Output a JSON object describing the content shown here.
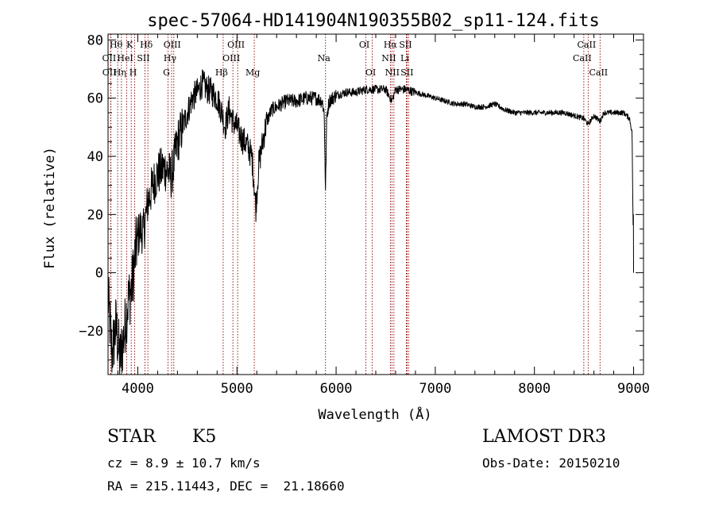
{
  "chart_data": {
    "type": "line",
    "title": "spec-57064-HD141904N190355B02_sp11-124.fits",
    "xlabel": "Wavelength (Å)",
    "ylabel": "Flux (relative)",
    "xlim": [
      3700,
      9100
    ],
    "ylim": [
      -35,
      82
    ],
    "xticks": [
      4000,
      5000,
      6000,
      7000,
      8000,
      9000
    ],
    "yticks": [
      -20,
      0,
      20,
      40,
      60,
      80
    ],
    "line_color": "#000000",
    "marker_color": "#8b0000",
    "spectrum_anchors": [
      [
        3700,
        -8
      ],
      [
        3740,
        -28
      ],
      [
        3780,
        -18
      ],
      [
        3820,
        -30
      ],
      [
        3860,
        -22
      ],
      [
        3900,
        -10
      ],
      [
        3940,
        -5
      ],
      [
        3980,
        8
      ],
      [
        4020,
        15
      ],
      [
        4060,
        14
      ],
      [
        4100,
        24
      ],
      [
        4150,
        30
      ],
      [
        4200,
        34
      ],
      [
        4260,
        36
      ],
      [
        4300,
        35
      ],
      [
        4340,
        33
      ],
      [
        4400,
        45
      ],
      [
        4450,
        50
      ],
      [
        4500,
        55
      ],
      [
        4550,
        60
      ],
      [
        4600,
        62
      ],
      [
        4650,
        65
      ],
      [
        4700,
        63
      ],
      [
        4750,
        62
      ],
      [
        4800,
        60
      ],
      [
        4850,
        55
      ],
      [
        4880,
        50
      ],
      [
        4920,
        56
      ],
      [
        4960,
        52
      ],
      [
        5000,
        50
      ],
      [
        5050,
        46
      ],
      [
        5100,
        44
      ],
      [
        5150,
        40
      ],
      [
        5170,
        32
      ],
      [
        5190,
        22
      ],
      [
        5220,
        37
      ],
      [
        5270,
        47
      ],
      [
        5300,
        52
      ],
      [
        5350,
        56
      ],
      [
        5400,
        57
      ],
      [
        5450,
        58
      ],
      [
        5500,
        59
      ],
      [
        5600,
        59
      ],
      [
        5700,
        60
      ],
      [
        5800,
        60
      ],
      [
        5860,
        59
      ],
      [
        5880,
        55
      ],
      [
        5893,
        28
      ],
      [
        5906,
        54
      ],
      [
        5930,
        59
      ],
      [
        6000,
        61
      ],
      [
        6100,
        62
      ],
      [
        6200,
        62
      ],
      [
        6300,
        63
      ],
      [
        6400,
        63
      ],
      [
        6500,
        63
      ],
      [
        6563,
        59
      ],
      [
        6600,
        63
      ],
      [
        6700,
        63
      ],
      [
        6800,
        62
      ],
      [
        6900,
        61
      ],
      [
        7000,
        60
      ],
      [
        7100,
        59
      ],
      [
        7200,
        58
      ],
      [
        7300,
        58
      ],
      [
        7400,
        57
      ],
      [
        7500,
        57
      ],
      [
        7600,
        58
      ],
      [
        7700,
        56
      ],
      [
        7800,
        55
      ],
      [
        7900,
        55
      ],
      [
        8000,
        55
      ],
      [
        8100,
        55
      ],
      [
        8200,
        55
      ],
      [
        8300,
        55
      ],
      [
        8400,
        54
      ],
      [
        8498,
        53
      ],
      [
        8542,
        51
      ],
      [
        8600,
        54
      ],
      [
        8662,
        52
      ],
      [
        8700,
        55
      ],
      [
        8800,
        55
      ],
      [
        8900,
        55
      ],
      [
        8960,
        53
      ],
      [
        8985,
        48
      ],
      [
        9000,
        0
      ]
    ],
    "lines": [
      {
        "label": "Hθ",
        "x": 3797,
        "row": 0
      },
      {
        "label": "OII",
        "x": 3727,
        "row": 1
      },
      {
        "label": "OII",
        "x": 3729,
        "row": 2
      },
      {
        "label": "Hη",
        "x": 3835,
        "row": 2
      },
      {
        "label": "HeI",
        "x": 3889,
        "row": 1
      },
      {
        "label": "K",
        "x": 3934,
        "row": 0
      },
      {
        "label": "H",
        "x": 3969,
        "row": 2
      },
      {
        "label": "SII",
        "x": 4072,
        "row": 1
      },
      {
        "label": "Hδ",
        "x": 4102,
        "row": 0
      },
      {
        "label": "OIII",
        "x": 4363,
        "row": 0
      },
      {
        "label": "Hγ",
        "x": 4341,
        "row": 1
      },
      {
        "label": "G",
        "x": 4305,
        "row": 2
      },
      {
        "label": "Hβ",
        "x": 4861,
        "row": 2
      },
      {
        "label": "OIII",
        "x": 4959,
        "row": 1
      },
      {
        "label": "OIII",
        "x": 5007,
        "row": 0
      },
      {
        "label": "Mg",
        "x": 5175,
        "row": 2
      },
      {
        "label": "Na",
        "x": 5893,
        "row": 1
      },
      {
        "label": "OI",
        "x": 6300,
        "row": 0
      },
      {
        "label": "OI",
        "x": 6364,
        "row": 2
      },
      {
        "label": "NII",
        "x": 6548,
        "row": 1
      },
      {
        "label": "Hα",
        "x": 6563,
        "row": 0
      },
      {
        "label": "NII",
        "x": 6583,
        "row": 2
      },
      {
        "label": "Li",
        "x": 6708,
        "row": 1
      },
      {
        "label": "SII",
        "x": 6716,
        "row": 0
      },
      {
        "label": "SII",
        "x": 6731,
        "row": 2
      },
      {
        "label": "CaII",
        "x": 8498,
        "row": 1
      },
      {
        "label": "CaII",
        "x": 8542,
        "row": 0
      },
      {
        "label": "CaII",
        "x": 8662,
        "row": 2
      }
    ]
  },
  "info": {
    "class_label": "STAR",
    "subclass": "K5",
    "survey": "LAMOST DR3",
    "redshift_line": "cz = 8.9 ± 10.7 km/s",
    "obs_date_line": "Obs-Date: 20150210",
    "coords_line": "RA = 215.11443, DEC =  21.18660"
  }
}
